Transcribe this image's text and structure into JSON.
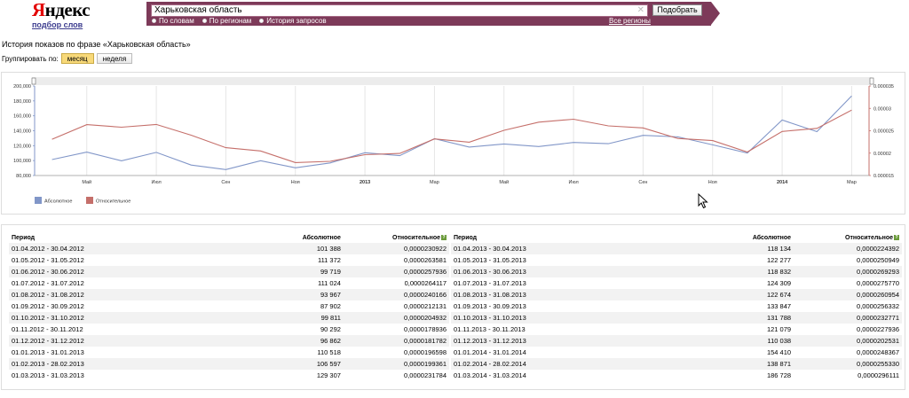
{
  "header": {
    "logo_text": "Яндекс",
    "logo_first": "Я",
    "logo_rest": "ндекс",
    "logo_sub": "подбор слов",
    "search_value": "Харьковская область",
    "radio_words": "По словам",
    "radio_regions": "По регионам",
    "radio_history": "История запросов",
    "regions_link": "Все регионы",
    "pick_button": "Подобрать"
  },
  "page": {
    "heading": "История показов по фразе «Харьковская область»",
    "group_label": "Группировать по:",
    "group_month": "месяц",
    "group_week": "неделя"
  },
  "chart_data": {
    "type": "line",
    "x": [
      "Апр 2012",
      "Май 2012",
      "Июн 2012",
      "Июл 2012",
      "Авг 2012",
      "Сен 2012",
      "Окт 2012",
      "Ноя 2012",
      "Дек 2012",
      "Янв 2013",
      "Фев 2013",
      "Мар 2013",
      "Апр 2013",
      "Май 2013",
      "Июн 2013",
      "Июл 2013",
      "Авг 2013",
      "Сен 2013",
      "Окт 2013",
      "Ноя 2013",
      "Дек 2013",
      "Янв 2014",
      "Фев 2014",
      "Мар 2014"
    ],
    "x_tick_labels": [
      "Май",
      "Июл",
      "Сен",
      "Ноя",
      "2013",
      "Мар",
      "Май",
      "Июл",
      "Сен",
      "Ноя",
      "2014",
      "Мар"
    ],
    "series": [
      {
        "name": "Абсолютное",
        "color": "#8196c8",
        "axis": "left",
        "values": [
          101388,
          111372,
          99719,
          111024,
          93967,
          87902,
          99811,
          90292,
          96862,
          110518,
          106597,
          129307,
          118134,
          122277,
          118832,
          124309,
          122674,
          133847,
          131788,
          121079,
          110038,
          154410,
          138871,
          186728
        ]
      },
      {
        "name": "Относительное",
        "color": "#c56f6a",
        "axis": "right",
        "values": [
          2.30922e-05,
          2.63581e-05,
          2.57936e-05,
          2.64117e-05,
          2.40166e-05,
          2.12131e-05,
          2.04932e-05,
          1.78936e-05,
          1.81782e-05,
          1.96598e-05,
          1.99361e-05,
          2.31784e-05,
          2.24392e-05,
          2.50949e-05,
          2.69293e-05,
          2.7577e-05,
          2.60954e-05,
          2.56332e-05,
          2.32771e-05,
          2.27936e-05,
          2.02531e-05,
          2.48367e-05,
          2.5533e-05,
          2.96111e-05
        ]
      }
    ],
    "y_left": {
      "min": 80000,
      "max": 200000,
      "ticks": [
        "80,000",
        "100,000",
        "120,000",
        "140,000",
        "160,000",
        "180,000",
        "200,000"
      ]
    },
    "y_right": {
      "min": 1.5e-05,
      "max": 3.5e-05,
      "ticks": [
        "0.000015",
        "0.00002",
        "0.000025",
        "0.00003",
        "0.000035"
      ]
    },
    "legend": [
      "Абсолютное",
      "Относительное"
    ],
    "legend_placement": "bottom-left",
    "grid": true
  },
  "table": {
    "headers": {
      "period": "Период",
      "absolute": "Абсолютное",
      "relative": "Относительное"
    },
    "left_rows": [
      {
        "period": "01.04.2012 - 30.04.2012",
        "abs": "101 388",
        "rel": "0,0000230922"
      },
      {
        "period": "01.05.2012 - 31.05.2012",
        "abs": "111 372",
        "rel": "0,0000263581"
      },
      {
        "period": "01.06.2012 - 30.06.2012",
        "abs": "99 719",
        "rel": "0,0000257936"
      },
      {
        "period": "01.07.2012 - 31.07.2012",
        "abs": "111 024",
        "rel": "0,0000264117"
      },
      {
        "period": "01.08.2012 - 31.08.2012",
        "abs": "93 967",
        "rel": "0,0000240166"
      },
      {
        "period": "01.09.2012 - 30.09.2012",
        "abs": "87 902",
        "rel": "0,0000212131"
      },
      {
        "period": "01.10.2012 - 31.10.2012",
        "abs": "99 811",
        "rel": "0,0000204932"
      },
      {
        "period": "01.11.2012 - 30.11.2012",
        "abs": "90 292",
        "rel": "0,0000178936"
      },
      {
        "period": "01.12.2012 - 31.12.2012",
        "abs": "96 862",
        "rel": "0,0000181782"
      },
      {
        "period": "01.01.2013 - 31.01.2013",
        "abs": "110 518",
        "rel": "0,0000196598"
      },
      {
        "period": "01.02.2013 - 28.02.2013",
        "abs": "106 597",
        "rel": "0,0000199361"
      },
      {
        "period": "01.03.2013 - 31.03.2013",
        "abs": "129 307",
        "rel": "0,0000231784"
      }
    ],
    "right_rows": [
      {
        "period": "01.04.2013 - 30.04.2013",
        "abs": "118 134",
        "rel": "0,0000224392"
      },
      {
        "period": "01.05.2013 - 31.05.2013",
        "abs": "122 277",
        "rel": "0,0000250949"
      },
      {
        "period": "01.06.2013 - 30.06.2013",
        "abs": "118 832",
        "rel": "0,0000269293"
      },
      {
        "period": "01.07.2013 - 31.07.2013",
        "abs": "124 309",
        "rel": "0,0000275770"
      },
      {
        "period": "01.08.2013 - 31.08.2013",
        "abs": "122 674",
        "rel": "0,0000260954"
      },
      {
        "period": "01.09.2013 - 30.09.2013",
        "abs": "133 847",
        "rel": "0,0000256332"
      },
      {
        "period": "01.10.2013 - 31.10.2013",
        "abs": "131 788",
        "rel": "0,0000232771"
      },
      {
        "period": "01.11.2013 - 30.11.2013",
        "abs": "121 079",
        "rel": "0,0000227936"
      },
      {
        "period": "01.12.2013 - 31.12.2013",
        "abs": "110 038",
        "rel": "0,0000202531"
      },
      {
        "period": "01.01.2014 - 31.01.2014",
        "abs": "154 410",
        "rel": "0,0000248367"
      },
      {
        "period": "01.02.2014 - 28.02.2014",
        "abs": "138 871",
        "rel": "0,0000255330"
      },
      {
        "period": "01.03.2014 - 31.03.2014",
        "abs": "186 728",
        "rel": "0,0000296111"
      }
    ]
  }
}
